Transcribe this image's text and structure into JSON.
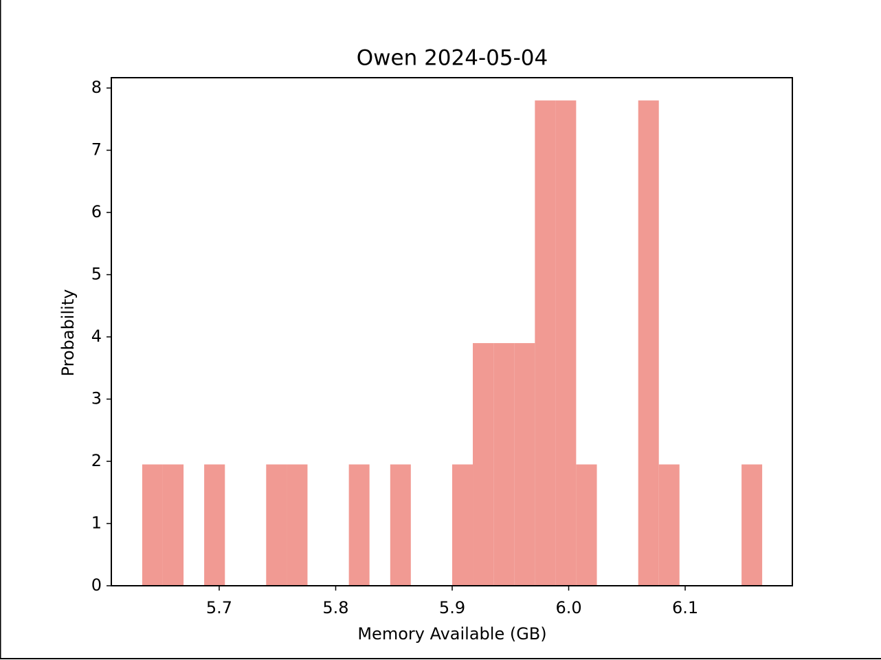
{
  "chart_data": {
    "type": "histogram",
    "title": "Owen 2024-05-04",
    "xlabel": "Memory Available (GB)",
    "ylabel": "Probability",
    "bins": [
      5.6339,
      5.6516,
      5.6694,
      5.6871,
      5.7049,
      5.7226,
      5.7403,
      5.7581,
      5.7758,
      5.7936,
      5.8113,
      5.829,
      5.8468,
      5.8645,
      5.8823,
      5.9,
      5.9177,
      5.9355,
      5.9532,
      5.971,
      5.9887,
      6.0064,
      6.0242,
      6.0419,
      6.0597,
      6.0774,
      6.0951,
      6.1129,
      6.1306,
      6.1484,
      6.1661
    ],
    "values": [
      1.95,
      1.95,
      0,
      1.95,
      0,
      0,
      1.95,
      1.95,
      0,
      0,
      1.95,
      0,
      1.95,
      0,
      0,
      1.95,
      3.9,
      3.9,
      3.9,
      7.8,
      7.8,
      1.95,
      0,
      0,
      7.8,
      1.95,
      0,
      0,
      0,
      1.95
    ],
    "color": "#f19a93",
    "xlim": [
      5.6074,
      6.192
    ],
    "ylim": [
      0,
      8.166
    ],
    "xticks": [
      5.7,
      5.8,
      5.9,
      {
        "value": 6,
        "label": "6.0"
      },
      6.1
    ],
    "yticks": [
      0,
      1,
      2,
      3,
      4,
      5,
      6,
      7,
      8
    ]
  }
}
